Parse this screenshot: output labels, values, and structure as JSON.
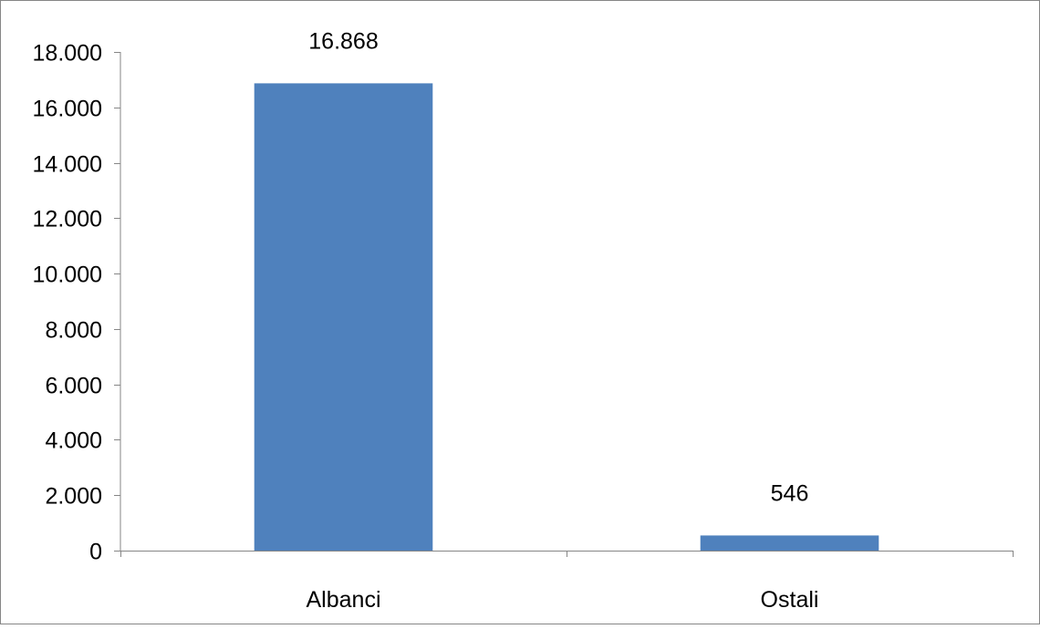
{
  "chart_data": {
    "type": "bar",
    "categories": [
      "Albanci",
      "Ostali"
    ],
    "values": [
      16868,
      546
    ],
    "value_labels": [
      "16.868",
      "546"
    ],
    "ylim": [
      0,
      18000
    ],
    "y_ticks": [
      0,
      2000,
      4000,
      6000,
      8000,
      10000,
      12000,
      14000,
      16000,
      18000
    ],
    "y_tick_labels": [
      "0",
      "2.000",
      "4.000",
      "6.000",
      "8.000",
      "10.000",
      "12.000",
      "14.000",
      "16.000",
      "18.000"
    ],
    "grid": false,
    "legend": "none",
    "bar_color": "#4F81BD",
    "axis_color": "#868686",
    "border_color": "#868686"
  }
}
